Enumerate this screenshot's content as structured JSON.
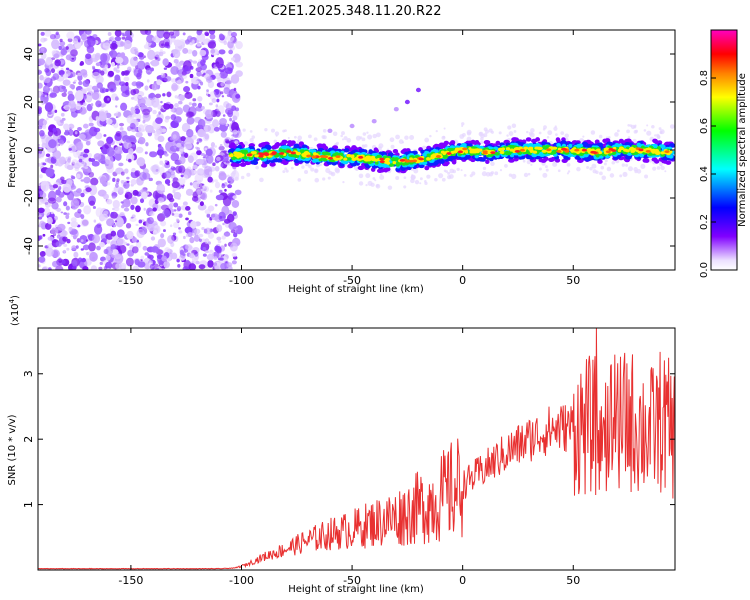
{
  "title": "C2E1.2025.348.11.20.R22",
  "chart_data": [
    {
      "type": "heatmap",
      "xlabel": "Height of straight line (km)",
      "ylabel": "Frequency (Hz)",
      "xlim": [
        -192,
        96
      ],
      "ylim": [
        -50,
        50
      ],
      "x_ticks": [
        -150,
        -100,
        -50,
        0,
        50
      ],
      "y_ticks": [
        -40,
        -20,
        0,
        20,
        40
      ],
      "colorbar": {
        "label": "Normalized spectral amplitude",
        "range": [
          0.0,
          1.0
        ],
        "ticks": [
          "0.0",
          "0.2",
          "0.4",
          "0.6",
          "0.8"
        ],
        "colors": [
          "#ffffff",
          "#8000ff",
          "#0000ff",
          "#00ffff",
          "#00ff00",
          "#ffff00",
          "#ff8000",
          "#ff0000",
          "#ff00c0"
        ]
      },
      "noise_region_x": [
        -192,
        -105
      ],
      "signal_band": {
        "x": [
          -105,
          -90,
          -80,
          -70,
          -60,
          -50,
          -40,
          -30,
          -20,
          -10,
          0,
          10,
          20,
          30,
          40,
          50,
          60,
          70,
          80,
          95
        ],
        "center_hz": [
          -2,
          -2,
          -1,
          -2,
          -3,
          -3,
          -4,
          -5,
          -4,
          -2,
          0,
          -1,
          0,
          0,
          0,
          0,
          -1,
          0,
          0,
          -1
        ]
      },
      "echo_streak": {
        "x": [
          -60,
          -50,
          -40,
          -30,
          -25,
          -20
        ],
        "center_hz": [
          8,
          10,
          12,
          17,
          20,
          25
        ]
      }
    },
    {
      "type": "line",
      "xlabel": "Height of straight line (km)",
      "ylabel": "SNR (10 * v/v)",
      "y_multiplier": "(x10",
      "y_multiplier_exp": "4",
      "y_multiplier_close": ")",
      "xlim": [
        -192,
        96
      ],
      "ylim": [
        0,
        3.7
      ],
      "x_ticks": [
        -150,
        -100,
        -50,
        0,
        50
      ],
      "y_ticks": [
        1,
        2,
        3
      ],
      "color": "#e83030",
      "series": [
        {
          "name": "SNR",
          "x": [
            -192,
            -150,
            -110,
            -103,
            -98,
            -90,
            -80,
            -70,
            -60,
            -50,
            -40,
            -30,
            -20,
            -10,
            0,
            10,
            20,
            30,
            40,
            50,
            55,
            60,
            65,
            70,
            75,
            80,
            85,
            90,
            95
          ],
          "y": [
            0.02,
            0.02,
            0.02,
            0.03,
            0.08,
            0.2,
            0.32,
            0.45,
            0.55,
            0.62,
            0.72,
            0.8,
            0.95,
            1.1,
            1.3,
            1.55,
            1.8,
            2.0,
            2.15,
            2.2,
            2.2,
            2.2,
            2.25,
            2.2,
            2.3,
            2.2,
            2.1,
            2.3,
            2.1
          ]
        }
      ]
    }
  ]
}
